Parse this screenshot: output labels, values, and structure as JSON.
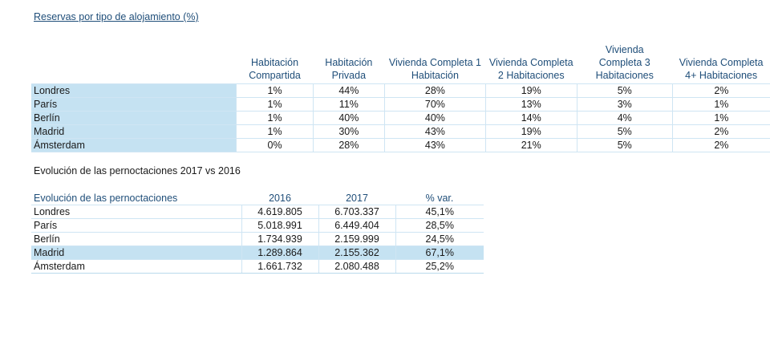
{
  "reservas": {
    "title": "Reservas por tipo de alojamiento (%)",
    "headers": [
      "Habitación Compartida",
      "Habitación Privada",
      "Vivienda Completa 1 Habitación",
      "Vivienda Completa 2 Habitaciones",
      "Vivienda Completa 3 Habitaciones",
      "Vivienda Completa 4+ Habitaciones"
    ],
    "rows": [
      {
        "city": "Londres",
        "values": [
          "1%",
          "44%",
          "28%",
          "19%",
          "5%",
          "2%"
        ]
      },
      {
        "city": "París",
        "values": [
          "1%",
          "11%",
          "70%",
          "13%",
          "3%",
          "1%"
        ]
      },
      {
        "city": "Berlín",
        "values": [
          "1%",
          "40%",
          "40%",
          "14%",
          "4%",
          "1%"
        ]
      },
      {
        "city": "Madrid",
        "values": [
          "1%",
          "30%",
          "43%",
          "19%",
          "5%",
          "2%"
        ]
      },
      {
        "city": "Ámsterdam",
        "values": [
          "0%",
          "28%",
          "43%",
          "21%",
          "5%",
          "2%"
        ]
      }
    ]
  },
  "pernoctaciones": {
    "title": "Evolución de las pernoctaciones 2017 vs 2016",
    "headers": [
      "Evolución de las pernoctaciones",
      "2016",
      "2017",
      "% var."
    ],
    "rows": [
      {
        "city": "Londres",
        "values": [
          "4.619.805",
          "6.703.337",
          "45,1%"
        ]
      },
      {
        "city": "París",
        "values": [
          "5.018.991",
          "6.449.404",
          "28,5%"
        ]
      },
      {
        "city": "Berlín",
        "values": [
          "1.734.939",
          "2.159.999",
          "24,5%"
        ]
      },
      {
        "city": "Madrid",
        "values": [
          "1.289.864",
          "2.155.362",
          "67,1%"
        ]
      },
      {
        "city": "Ámsterdam",
        "values": [
          "1.661.732",
          "2.080.488",
          "25,2%"
        ]
      }
    ]
  }
}
